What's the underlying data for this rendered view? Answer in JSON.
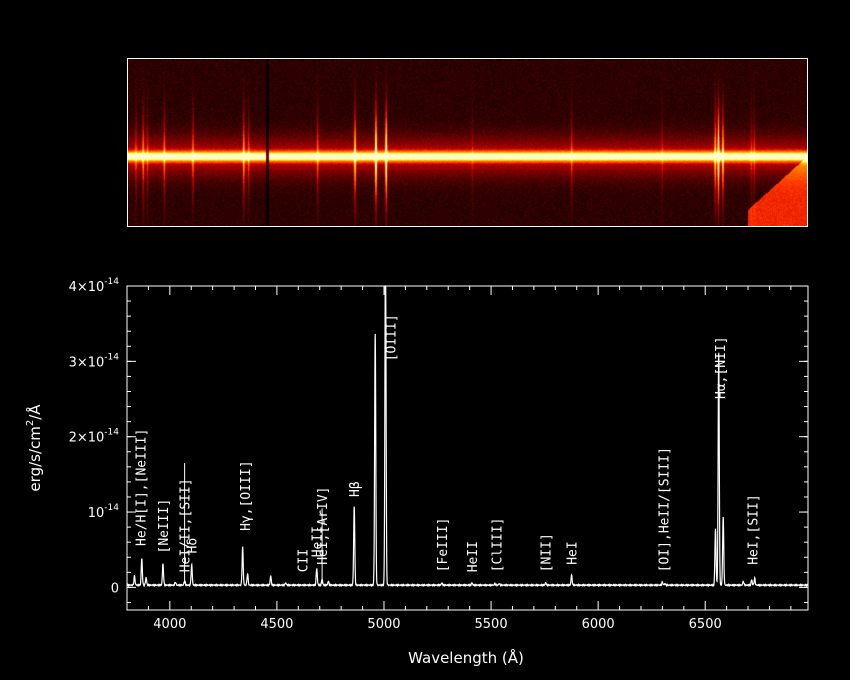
{
  "chart_data": {
    "type": "line",
    "xlabel": "Wavelength (Å)",
    "ylabel": "erg/s/cm²/Å",
    "ylabel_parts": [
      "erg/s/cm",
      "2",
      "/Å"
    ],
    "xlim": [
      3800,
      6980
    ],
    "ylim": [
      -3e-15,
      4e-14
    ],
    "x_ticks": [
      4000,
      4500,
      5000,
      5500,
      6000,
      6500
    ],
    "x_tick_labels": [
      "4000",
      "4500",
      "5000",
      "5500",
      "6000",
      "6500"
    ],
    "y_ticks": [
      0,
      1e-14,
      2e-14,
      3e-14,
      4e-14
    ],
    "y_tick_labels": [
      {
        "mant": "0",
        "exp": ""
      },
      {
        "mant": "10",
        "exp": "-14"
      },
      {
        "mant": "2×10",
        "exp": "-14"
      },
      {
        "mant": "3×10",
        "exp": "-14"
      },
      {
        "mant": "4×10",
        "exp": "-14"
      }
    ],
    "grid": false,
    "continuum": 3e-16,
    "emission_lines": [
      {
        "wave": 3835,
        "peak": 1.2e-15
      },
      {
        "wave": 3869,
        "peak": 3.5e-15
      },
      {
        "wave": 3889,
        "peak": 1e-15
      },
      {
        "wave": 3968,
        "peak": 2.8e-15
      },
      {
        "wave": 4026,
        "peak": 4e-16
      },
      {
        "wave": 4069,
        "peak": 6e-16
      },
      {
        "wave": 4102,
        "peak": 2.7e-15
      },
      {
        "wave": 4340,
        "peak": 5e-15
      },
      {
        "wave": 4363,
        "peak": 1.5e-15
      },
      {
        "wave": 4471,
        "peak": 1.2e-15
      },
      {
        "wave": 4541,
        "peak": 3e-16
      },
      {
        "wave": 4686,
        "peak": 2.2e-15
      },
      {
        "wave": 4711,
        "peak": 8e-16
      },
      {
        "wave": 4740,
        "peak": 5e-16
      },
      {
        "wave": 4861,
        "peak": 1.05e-14
      },
      {
        "wave": 4959,
        "peak": 3.35e-14
      },
      {
        "wave": 5007,
        "peak": 4.6e-14
      },
      {
        "wave": 5270,
        "peak": 3e-16
      },
      {
        "wave": 5411,
        "peak": 3e-16
      },
      {
        "wave": 5518,
        "peak": 2e-16
      },
      {
        "wave": 5538,
        "peak": 2e-16
      },
      {
        "wave": 5755,
        "peak": 3e-16
      },
      {
        "wave": 5876,
        "peak": 1.3e-15
      },
      {
        "wave": 6300,
        "peak": 4e-16
      },
      {
        "wave": 6312,
        "peak": 2e-16
      },
      {
        "wave": 6548,
        "peak": 7.5e-15
      },
      {
        "wave": 6563,
        "peak": 3.1e-14
      },
      {
        "wave": 6584,
        "peak": 9e-15
      },
      {
        "wave": 6678,
        "peak": 5e-16
      },
      {
        "wave": 6717,
        "peak": 7e-16
      },
      {
        "wave": 6731,
        "peak": 9e-16
      }
    ],
    "annotations": [
      {
        "text": "He/H[I],[NeIII]",
        "x": 3862,
        "y_base": 5.5e-15,
        "y_tick_top": 0
      },
      {
        "text": "[NeIII]",
        "x": 3968,
        "y_base": 4.5e-15,
        "y_tick_top": 0
      },
      {
        "text": "HeI/II,[SII]",
        "x": 4069,
        "y_base": 2e-15,
        "y_tick_top": 1.65e-14
      },
      {
        "text": "Hδ",
        "x": 4102,
        "y_base": 4.5e-15,
        "y_tick_top": 0
      },
      {
        "text": "Hγ,[OIII]",
        "x": 4352,
        "y_base": 7.5e-15,
        "y_tick_top": 0
      },
      {
        "text": "CII",
        "x": 4620,
        "y_base": 2e-15,
        "y_tick_top": 0
      },
      {
        "text": "HeII",
        "x": 4686,
        "y_base": 4e-15,
        "y_tick_top": 0
      },
      {
        "text": "HeI,[ArIV]",
        "x": 4711,
        "y_base": 3e-15,
        "y_tick_top": 1.05e-14
      },
      {
        "text": "Hβ",
        "x": 4861,
        "y_base": 1.2e-14,
        "y_tick_top": 0
      },
      {
        "text": "[OIII]",
        "x": 5030,
        "y_base": 3e-14,
        "y_tick_top": 0
      },
      {
        "text": "[FeIII]",
        "x": 5270,
        "y_base": 2e-15,
        "y_tick_top": 0
      },
      {
        "text": "HeII",
        "x": 5411,
        "y_base": 2e-15,
        "y_tick_top": 0
      },
      {
        "text": "[ClIII]",
        "x": 5525,
        "y_base": 2e-15,
        "y_tick_top": 0
      },
      {
        "text": "[NII]",
        "x": 5755,
        "y_base": 2e-15,
        "y_tick_top": 0
      },
      {
        "text": "HeI",
        "x": 5876,
        "y_base": 3e-15,
        "y_tick_top": 0
      },
      {
        "text": "[OI],HeII/[SIII]",
        "x": 6306,
        "y_base": 2e-15,
        "y_tick_top": 0
      },
      {
        "text": "Hα,[NII]",
        "x": 6570,
        "y_base": 2.5e-14,
        "y_tick_top": 0
      },
      {
        "text": "HeI,[SII]",
        "x": 6720,
        "y_base": 3e-15,
        "y_tick_top": 0
      }
    ],
    "image_panel": {
      "colormap": "heat",
      "line_waves": [
        3835,
        3869,
        3889,
        3968,
        4102,
        4340,
        4363,
        4686,
        4861,
        4959,
        5007,
        5411,
        5876,
        6300,
        6548,
        6563,
        6584,
        6717,
        6731
      ]
    }
  }
}
